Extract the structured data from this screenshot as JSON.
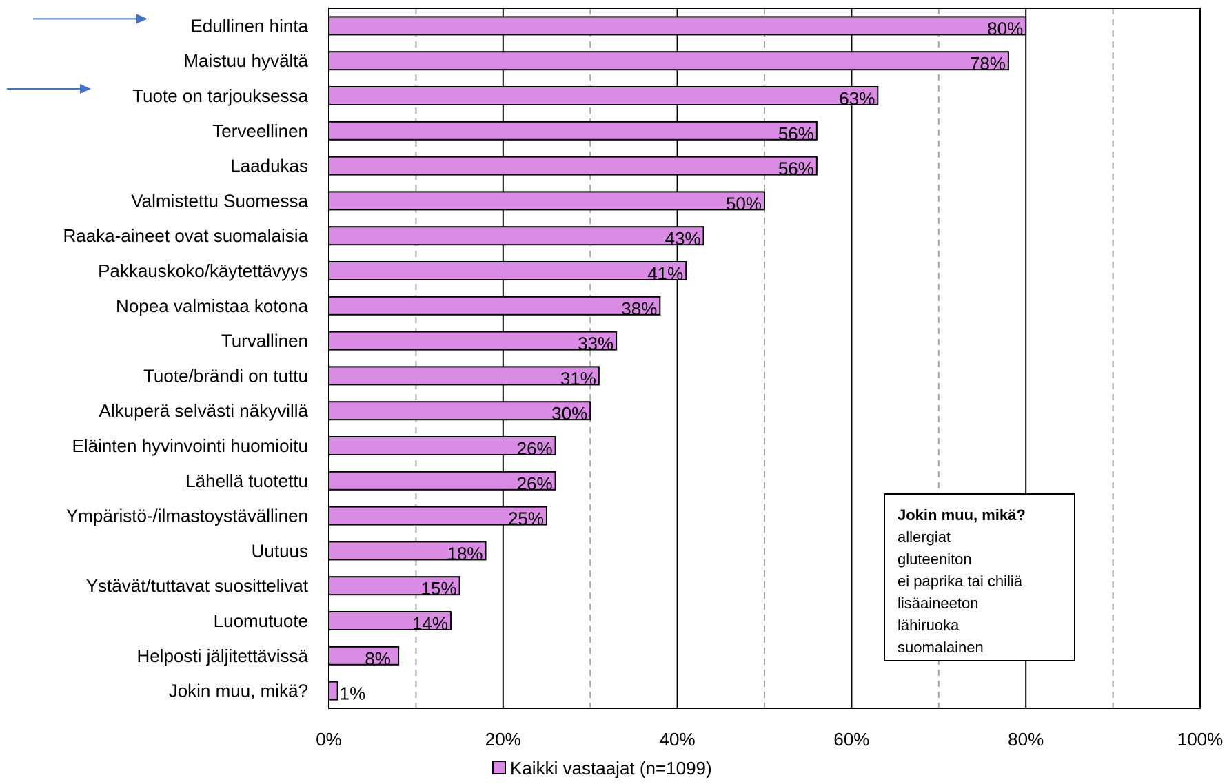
{
  "chart_data": {
    "type": "bar",
    "orientation": "horizontal",
    "categories": [
      "Edullinen hinta",
      "Maistuu hyvältä",
      "Tuote on tarjouksessa",
      "Terveellinen",
      "Laadukas",
      "Valmistettu Suomessa",
      "Raaka-aineet ovat suomalaisia",
      "Pakkauskoko/käytettävyys",
      "Nopea valmistaa kotona",
      "Turvallinen",
      "Tuote/brändi on tuttu",
      "Alkuperä selvästi näkyvillä",
      "Eläinten hyvinvointi huomioitu",
      "Lähellä tuotettu",
      "Ympäristö-/ilmastoystävällinen",
      "Uutuus",
      "Ystävät/tuttavat suosittelivat",
      "Luomutuote",
      "Helposti jäljitettävissä",
      "Jokin muu, mikä?"
    ],
    "series": [
      {
        "name": "Kaikki vastaajat (n=1099)",
        "values": [
          80,
          78,
          63,
          56,
          56,
          50,
          43,
          41,
          38,
          33,
          31,
          30,
          26,
          26,
          25,
          18,
          15,
          14,
          8,
          1
        ],
        "data_labels": [
          "80%",
          "78%",
          "63%",
          "56%",
          "56%",
          "50%",
          "43%",
          "41%",
          "38%",
          "33%",
          "31%",
          "30%",
          "26%",
          "26%",
          "25%",
          "18%",
          "15%",
          "14%",
          "8%",
          "1%"
        ]
      }
    ],
    "xlim": [
      0,
      100
    ],
    "xticks": [
      "0%",
      "20%",
      "40%",
      "60%",
      "80%",
      "100%"
    ],
    "grid": "vertical: solid major every 20%, dashed minor every 10%",
    "legend": "bottom-center",
    "highlighted_categories": [
      "Edullinen hinta",
      "Tuote on tarjouksessa"
    ]
  },
  "colors": {
    "bar_fill": "#DA8BE4",
    "bar_stroke": "#000000",
    "arrow": "#4472C4",
    "grid_major": "#000000",
    "grid_minor": "#A6A6A6"
  },
  "note": {
    "title": "Jokin muu, mikä?",
    "lines": [
      "allergiat",
      "gluteeniton",
      "ei paprika tai chiliä",
      "lisäaineeton",
      "lähiruoka",
      "suomalainen"
    ]
  }
}
